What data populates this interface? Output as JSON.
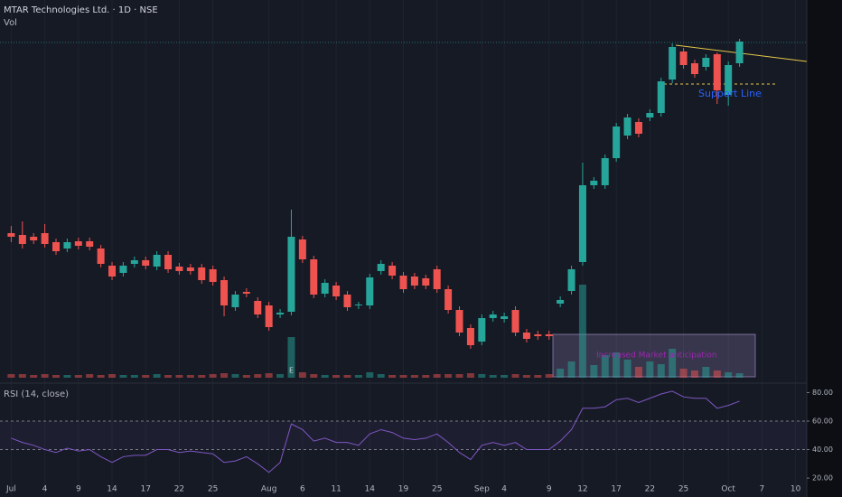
{
  "chart_data": [
    {
      "type": "candlestick",
      "title": "MTAR Technologies Ltd. · 1D · NSE",
      "volume_label": "Vol",
      "earnings_marker": "E",
      "annotations": [
        "Support Line",
        "Increased Market anticipation"
      ],
      "up_color": "#26a69a",
      "down_color": "#ef5350",
      "xlim": [
        -1,
        71
      ],
      "ylim": [
        1500,
        1918
      ],
      "vlim": [
        0,
        418
      ],
      "xticks": [
        {
          "value": 0,
          "label": "Jul"
        },
        {
          "value": 3,
          "label": "4"
        },
        {
          "value": 6,
          "label": "9"
        },
        {
          "value": 9,
          "label": "14"
        },
        {
          "value": 12,
          "label": "17"
        },
        {
          "value": 15,
          "label": "22"
        },
        {
          "value": 18,
          "label": "25"
        },
        {
          "value": 23,
          "label": "Aug"
        },
        {
          "value": 26,
          "label": "6"
        },
        {
          "value": 29,
          "label": "11"
        },
        {
          "value": 32,
          "label": "14"
        },
        {
          "value": 35,
          "label": "19"
        },
        {
          "value": 38,
          "label": "25"
        },
        {
          "value": 42,
          "label": "Sep"
        },
        {
          "value": 44,
          "label": "4"
        },
        {
          "value": 48,
          "label": "9"
        },
        {
          "value": 51,
          "label": "12"
        },
        {
          "value": 54,
          "label": "17"
        },
        {
          "value": 57,
          "label": "22"
        },
        {
          "value": 60,
          "label": "25"
        },
        {
          "value": 64,
          "label": "Oct"
        },
        {
          "value": 67,
          "label": "7"
        },
        {
          "value": 70,
          "label": "10"
        }
      ],
      "open": [
        1660,
        1658,
        1656,
        1660,
        1650,
        1643,
        1651,
        1651,
        1643,
        1624,
        1616,
        1626,
        1630,
        1623,
        1636,
        1623,
        1622,
        1622,
        1620,
        1608,
        1578,
        1595,
        1585,
        1580,
        1570,
        1573,
        1653,
        1631,
        1593,
        1602,
        1592,
        1580,
        1580,
        1618,
        1624,
        1613,
        1612,
        1610,
        1620,
        1598,
        1575,
        1555,
        1540,
        1566,
        1565,
        1575,
        1550,
        1548,
        1548,
        1582,
        1596,
        1628,
        1713,
        1713,
        1743,
        1768,
        1783,
        1788,
        1793,
        1830,
        1861,
        1848,
        1844,
        1858,
        1813,
        1848
      ],
      "high": [
        1668,
        1673,
        1660,
        1670,
        1654,
        1654,
        1655,
        1655,
        1647,
        1628,
        1628,
        1634,
        1634,
        1640,
        1640,
        1627,
        1626,
        1626,
        1624,
        1612,
        1596,
        1599,
        1589,
        1584,
        1576,
        1686,
        1657,
        1635,
        1609,
        1606,
        1596,
        1584,
        1615,
        1630,
        1628,
        1617,
        1616,
        1614,
        1624,
        1602,
        1579,
        1559,
        1570,
        1574,
        1572,
        1579,
        1554,
        1552,
        1552,
        1590,
        1624,
        1738,
        1722,
        1747,
        1782,
        1792,
        1787,
        1797,
        1832,
        1870,
        1865,
        1852,
        1858,
        1860,
        1850,
        1875
      ],
      "low": [
        1650,
        1643,
        1648,
        1644,
        1636,
        1639,
        1642,
        1641,
        1622,
        1608,
        1612,
        1622,
        1620,
        1619,
        1616,
        1614,
        1614,
        1604,
        1602,
        1568,
        1574,
        1589,
        1566,
        1552,
        1566,
        1569,
        1627,
        1588,
        1589,
        1586,
        1574,
        1576,
        1576,
        1614,
        1609,
        1594,
        1598,
        1598,
        1594,
        1571,
        1546,
        1532,
        1536,
        1562,
        1561,
        1546,
        1539,
        1542,
        1542,
        1578,
        1592,
        1624,
        1709,
        1709,
        1739,
        1764,
        1766,
        1784,
        1789,
        1826,
        1842,
        1832,
        1840,
        1803,
        1801,
        1844
      ],
      "close": [
        1656,
        1648,
        1652,
        1648,
        1640,
        1650,
        1646,
        1645,
        1626,
        1612,
        1624,
        1630,
        1624,
        1636,
        1620,
        1618,
        1618,
        1608,
        1606,
        1580,
        1592,
        1593,
        1570,
        1556,
        1572,
        1656,
        1631,
        1592,
        1605,
        1590,
        1578,
        1581,
        1611,
        1626,
        1613,
        1598,
        1602,
        1602,
        1598,
        1575,
        1550,
        1536,
        1566,
        1570,
        1568,
        1550,
        1543,
        1546,
        1546,
        1586,
        1620,
        1713,
        1718,
        1743,
        1778,
        1788,
        1770,
        1793,
        1828,
        1866,
        1846,
        1836,
        1854,
        1818,
        1846,
        1872
      ],
      "volume": [
        4,
        4,
        3,
        4,
        3,
        3,
        3,
        4,
        3,
        4,
        3,
        3,
        3,
        4,
        3,
        3,
        3,
        3,
        4,
        5,
        4,
        3,
        4,
        5,
        4,
        45,
        6,
        4,
        3,
        3,
        3,
        3,
        6,
        4,
        3,
        3,
        3,
        3,
        4,
        4,
        4,
        5,
        4,
        3,
        3,
        4,
        3,
        3,
        4,
        10,
        18,
        103,
        14,
        25,
        28,
        20,
        12,
        18,
        15,
        32,
        10,
        8,
        12,
        8,
        6,
        5
      ]
    },
    {
      "type": "line",
      "title": "RSI (14, close)",
      "color": "#7e57c2",
      "band_color": "#7e57c2",
      "ylim": [
        8,
        86
      ],
      "bands": [
        60,
        40
      ],
      "yticks": [
        {
          "value": 80,
          "label": "80.00"
        },
        {
          "value": 60,
          "label": "60.00"
        },
        {
          "value": 40,
          "label": "40.00"
        },
        {
          "value": 20,
          "label": "20.00"
        }
      ],
      "values": [
        48,
        45,
        43,
        40,
        38,
        41,
        39,
        40,
        35,
        31,
        35,
        36,
        36,
        40,
        40,
        38,
        39,
        38,
        37,
        31,
        32,
        35,
        30,
        24,
        31,
        58,
        54,
        46,
        48,
        45,
        45,
        43,
        51,
        54,
        52,
        48,
        47,
        48,
        51,
        45,
        38,
        33,
        43,
        45,
        43,
        45,
        40,
        40,
        40,
        46,
        54,
        69,
        69,
        70,
        75,
        76,
        73,
        76,
        79,
        81,
        77,
        76,
        76,
        69,
        71,
        74
      ]
    }
  ]
}
